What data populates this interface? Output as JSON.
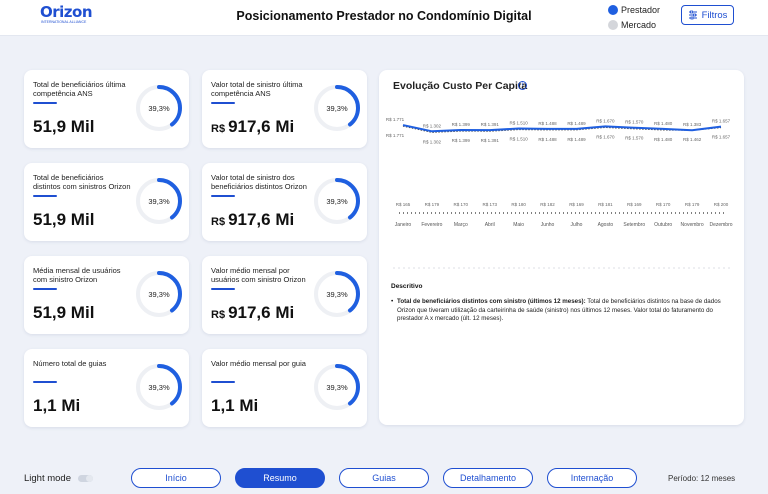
{
  "header": {
    "logo_text": "Orizon",
    "logo_sub": "INTERNATIONAL ALLIANCE",
    "title": "Posicionamento Prestador no Condomínio Digital",
    "legend": [
      {
        "label": "Prestador",
        "color": "#1f5fe0"
      },
      {
        "label": "Mercado",
        "color": "#d4d6db"
      }
    ],
    "filter_label": "Filtros"
  },
  "cards": [
    {
      "label": "Total de beneficiários última competência ANS",
      "value": "51,9 Mil",
      "currency": "",
      "percent": "39,3%",
      "fraction": 0.393
    },
    {
      "label": "Valor total de sinistro última competência ANS",
      "value": "917,6 Mi",
      "currency": "R$",
      "percent": "39,3%",
      "fraction": 0.393
    },
    {
      "label": "Total de beneficiários distintos com sinistros Orizon",
      "value": "51,9 Mil",
      "currency": "",
      "percent": "39,3%",
      "fraction": 0.393
    },
    {
      "label": "Valor total de sinistro dos beneficiários distintos Orizon",
      "value": "917,6 Mi",
      "currency": "R$",
      "percent": "39,3%",
      "fraction": 0.393
    },
    {
      "label": "Média mensal de usuários com sinistro Orizon",
      "value": "51,9 Mil",
      "currency": "",
      "percent": "39,3%",
      "fraction": 0.393
    },
    {
      "label": "Valor médio mensal por usuários com sinistro Orizon",
      "value": "917,6 Mi",
      "currency": "R$",
      "percent": "39,3%",
      "fraction": 0.393
    },
    {
      "label": "Número total de guias",
      "value": "1,1 Mi",
      "currency": "",
      "percent": "39,3%",
      "fraction": 0.393
    },
    {
      "label": "Valor médio mensal por guia",
      "value": "1,1 Mi",
      "currency": "",
      "percent": "39,3%",
      "fraction": 0.393
    }
  ],
  "chart_panel": {
    "title": "Evolução Custo Per Capita",
    "info_icon": "info-icon",
    "desc_title": "Descritivo",
    "desc_bold": "Total de beneficiários distintos com sinistro (últimos 12 meses):",
    "desc_text": " Total de beneficiários distintos na base de dados Orizon que tiveram utilização da carteirinha de saúde (sinistro) nos últimos 12 meses. Valor total do faturamento do prestador A x mercado (últ. 12 meses)."
  },
  "chart_data": {
    "type": "line",
    "categories": [
      "Janeiro",
      "Fevereiro",
      "Março",
      "Abril",
      "Maio",
      "Junho",
      "Julho",
      "Agosto",
      "Setembro",
      "Outubro",
      "Novembro",
      "Dezembro"
    ],
    "series": [
      {
        "name": "Prestador",
        "values": [
          1771,
          1302,
          1399,
          1391,
          1510,
          1488,
          1489,
          1670,
          1570,
          1480,
          1383,
          1657
        ],
        "labels": [
          "R$ 1.771",
          "R$ 1.302",
          "R$ 1.399",
          "R$ 1.391",
          "R$ 1.510",
          "R$ 1.488",
          "R$ 1.489",
          "R$ 1.670",
          "R$ 1.570",
          "R$ 1.480",
          "R$ 1.383",
          "R$ 1.657"
        ]
      },
      {
        "name": "Mercado",
        "values": [
          1771,
          1302,
          1399,
          1391,
          1510,
          1488,
          1489,
          1670,
          1570,
          1480,
          1462,
          1657
        ],
        "labels": [
          "R$ 1.771",
          "R$ 1.302",
          "R$ 1.399",
          "R$ 1.391",
          "R$ 1.510",
          "R$ 1.488",
          "R$ 1.489",
          "R$ 1.670",
          "R$ 1.570",
          "R$ 1.480",
          "R$ 1.462",
          "R$ 1.657"
        ]
      }
    ],
    "bar_labels": [
      "R$ 165",
      "R$ 179",
      "R$ 170",
      "R$ 173",
      "R$ 180",
      "R$ 182",
      "R$ 169",
      "R$ 181",
      "R$ 169",
      "R$ 170",
      "R$ 179",
      "R$ 200"
    ]
  },
  "bottom": {
    "light_mode": "Light mode",
    "nav": [
      {
        "label": "Início",
        "active": false
      },
      {
        "label": "Resumo",
        "active": true
      },
      {
        "label": "Guias",
        "active": false
      },
      {
        "label": "Detalhamento",
        "active": false
      },
      {
        "label": "Internação",
        "active": false
      }
    ],
    "period": "Período: 12 meses"
  }
}
